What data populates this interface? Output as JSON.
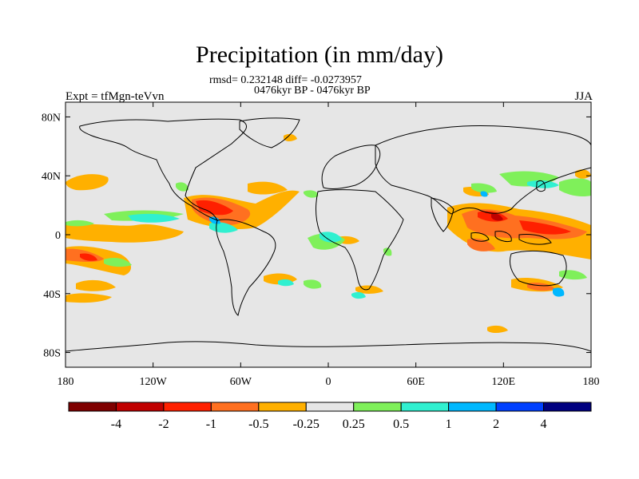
{
  "title": "Precipitation (in mm/day)",
  "stats_line": "rmsd= 0.232148 diff= -0.0273957",
  "period_line": "0476kyr BP - 0476kyr BP",
  "left_string": "Expt = tfMgn-teVvn",
  "right_string": "JJA",
  "map": {
    "background_color": "#e6e6e6",
    "lon_ticks": [
      "180",
      "120W",
      "60W",
      "0",
      "60E",
      "120E",
      "180"
    ],
    "lat_ticks": [
      "80N",
      "40N",
      "0",
      "40S",
      "80S"
    ]
  },
  "colorbar": {
    "colors": [
      "#7f0000",
      "#c00000",
      "#ff2000",
      "#ff7020",
      "#ffb000",
      "#e6e6e6",
      "#7ff05a",
      "#30f0d0",
      "#00b8ff",
      "#0040ff",
      "#000080"
    ],
    "labels": [
      "-4",
      "-2",
      "-1",
      "-0.5",
      "-0.25",
      "0.25",
      "0.5",
      "1",
      "2",
      "4"
    ]
  }
}
